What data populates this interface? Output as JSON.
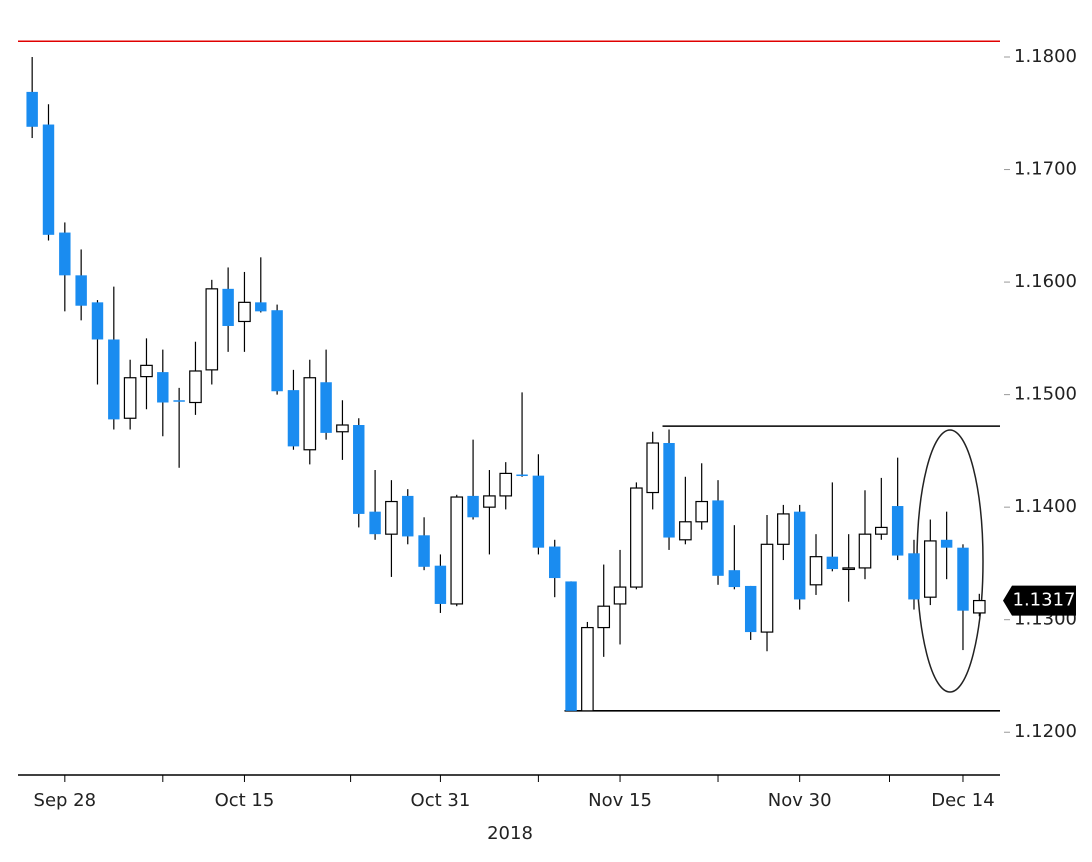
{
  "chart_data": {
    "type": "candlestick",
    "xlabel": "2018",
    "categories": [
      null,
      null,
      "Sep 28",
      null,
      null,
      null,
      null,
      null,
      null,
      null,
      null,
      null,
      null,
      "Oct 15",
      null,
      null,
      null,
      null,
      null,
      null,
      null,
      null,
      null,
      null,
      null,
      "Oct 31",
      null,
      null,
      null,
      null,
      null,
      null,
      null,
      null,
      null,
      null,
      "Nov 15",
      null,
      null,
      null,
      null,
      null,
      null,
      null,
      null,
      null,
      null,
      "Nov 30",
      null,
      null,
      null,
      null,
      null,
      null,
      null,
      null,
      null,
      "Dec 14",
      null
    ],
    "open": [
      1.1769,
      1.174,
      1.1644,
      1.1606,
      1.1582,
      1.1549,
      1.1479,
      1.1516,
      1.152,
      1.1495,
      1.1493,
      1.1522,
      1.1594,
      1.1565,
      1.1582,
      1.1575,
      1.1504,
      1.1451,
      1.1511,
      1.1467,
      1.1473,
      1.1396,
      1.1376,
      1.141,
      1.1375,
      1.1348,
      1.1314,
      1.141,
      1.14,
      1.141,
      1.1429,
      1.1428,
      1.1365,
      1.1334,
      1.1219,
      1.1293,
      1.1314,
      1.1329,
      1.1413,
      1.1457,
      1.1371,
      1.1387,
      1.1406,
      1.1344,
      1.133,
      1.1289,
      1.1367,
      1.1396,
      1.1331,
      1.1356,
      1.1346,
      1.1346,
      1.1376,
      1.1401,
      1.1359,
      1.132,
      1.1371,
      1.1364,
      1.1306
    ],
    "high": [
      1.18,
      1.1758,
      1.1653,
      1.1629,
      1.1584,
      1.1596,
      1.1531,
      1.155,
      1.154,
      1.1506,
      1.1547,
      1.1602,
      1.1613,
      1.1609,
      1.1622,
      1.158,
      1.1522,
      1.1531,
      1.154,
      1.1495,
      1.1479,
      1.1433,
      1.1424,
      1.1416,
      1.1391,
      1.1358,
      1.1411,
      1.146,
      1.1433,
      1.144,
      1.1502,
      1.1447,
      1.1371,
      1.1334,
      1.1298,
      1.1349,
      1.1362,
      1.1422,
      1.1467,
      1.1469,
      1.1427,
      1.1439,
      1.1424,
      1.1384,
      1.133,
      1.1393,
      1.1402,
      1.1402,
      1.1376,
      1.1422,
      1.1376,
      1.1415,
      1.1426,
      1.1444,
      1.1371,
      1.1389,
      1.1396,
      1.1367,
      1.1323
    ],
    "low": [
      1.1728,
      1.1637,
      1.1574,
      1.1566,
      1.1509,
      1.1469,
      1.1469,
      1.1487,
      1.1463,
      1.1435,
      1.1482,
      1.1509,
      1.1538,
      1.1538,
      1.1573,
      1.15,
      1.1451,
      1.1438,
      1.146,
      1.1442,
      1.1382,
      1.1371,
      1.1338,
      1.1367,
      1.1344,
      1.1306,
      1.1312,
      1.1389,
      1.1358,
      1.1398,
      1.1427,
      1.1358,
      1.132,
      1.1219,
      1.1219,
      1.1267,
      1.1278,
      1.1327,
      1.1398,
      1.1362,
      1.1367,
      1.138,
      1.1331,
      1.1327,
      1.1282,
      1.1272,
      1.1353,
      1.1309,
      1.1322,
      1.1343,
      1.1316,
      1.1336,
      1.1371,
      1.1353,
      1.1309,
      1.1313,
      1.1336,
      1.1273,
      1.1303
    ],
    "close": [
      1.1738,
      1.1642,
      1.1606,
      1.1579,
      1.1549,
      1.1478,
      1.1515,
      1.1526,
      1.1493,
      1.1494,
      1.1521,
      1.1594,
      1.1561,
      1.1582,
      1.1574,
      1.1503,
      1.1454,
      1.1515,
      1.1466,
      1.1473,
      1.1394,
      1.1376,
      1.1405,
      1.1374,
      1.1347,
      1.1314,
      1.1409,
      1.1391,
      1.141,
      1.143,
      1.1428,
      1.1364,
      1.1337,
      1.1219,
      1.1293,
      1.1312,
      1.1329,
      1.1417,
      1.1457,
      1.1373,
      1.1387,
      1.1405,
      1.1339,
      1.1329,
      1.1289,
      1.1367,
      1.1394,
      1.1318,
      1.1356,
      1.1345,
      1.1346,
      1.1376,
      1.1382,
      1.1357,
      1.1318,
      1.137,
      1.1364,
      1.1308,
      1.1317
    ],
    "up_color": "#ffffff",
    "down_color": "#1a8cf0",
    "last_price": 1.1317,
    "reference_lines": [
      {
        "value": 1.1814,
        "color": "#e00000",
        "from": 0
      },
      {
        "value": 1.1472,
        "color": "#000000",
        "from": 39
      },
      {
        "value": 1.1219,
        "color": "#000000",
        "from": 33
      }
    ],
    "ylim": [
      1.1162,
      1.1824
    ],
    "yticks": [
      {
        "value": 1.12,
        "label": "1.1200"
      },
      {
        "value": 1.13,
        "label": "1.1300"
      },
      {
        "value": 1.14,
        "label": "1.1400"
      },
      {
        "value": 1.15,
        "label": "1.1500"
      },
      {
        "value": 1.16,
        "label": "1.1600"
      },
      {
        "value": 1.17,
        "label": "1.1700"
      },
      {
        "value": 1.18,
        "label": "1.1800"
      }
    ]
  }
}
